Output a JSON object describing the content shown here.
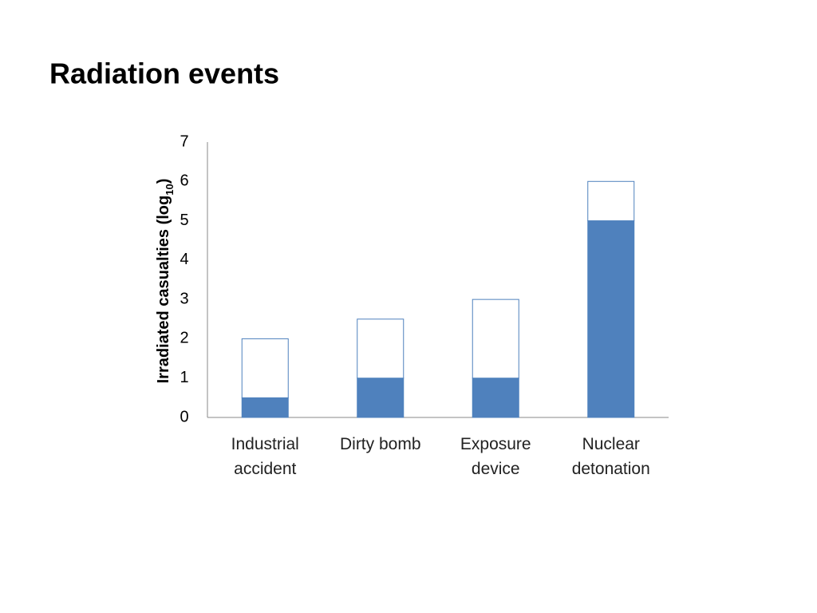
{
  "chart_data": {
    "type": "stacked_bar",
    "title": "Radiation events",
    "y_label": {
      "text": "Irradiated casualties (log",
      "subscript": "10",
      "end": ")"
    },
    "categories": [
      "Industrial accident",
      "Dirty bomb",
      "Exposure device",
      "Nuclear detonation"
    ],
    "series": [
      {
        "color": "#4f81bd",
        "edge_color": "#4f81bd",
        "values": [
          0.5,
          1,
          1,
          5
        ]
      },
      {
        "color": "#ffffff",
        "edge_color": "#4f81bd",
        "values": [
          1.5,
          1.5,
          2,
          1
        ]
      }
    ],
    "ylim": [
      0,
      7
    ],
    "yticks": [
      0,
      1,
      2,
      3,
      4,
      5,
      6,
      7
    ],
    "grid": false
  }
}
